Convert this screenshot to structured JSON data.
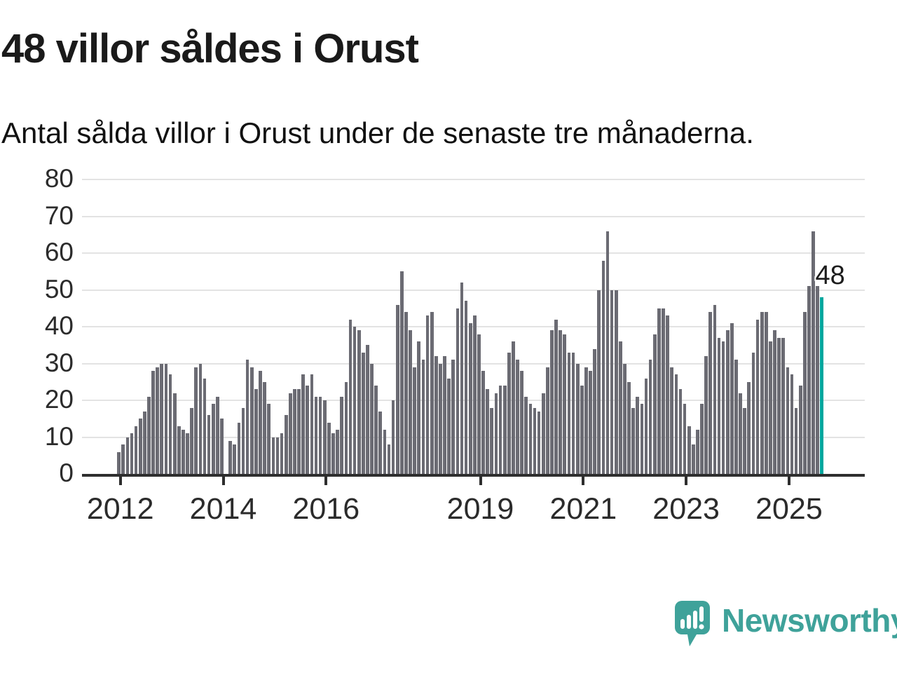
{
  "header": {
    "title": "48 villor såldes i Orust",
    "subtitle": "Antal sålda villor i Orust under de senaste tre månaderna."
  },
  "colors": {
    "bar": "#6b6b73",
    "highlight": "#00a79e",
    "axis": "#2e2e2e",
    "grid": "#e3e3e3",
    "text": "#1a1a1a",
    "logo": "#3fa29a"
  },
  "chart_data": {
    "type": "bar",
    "title": "48 villor såldes i Orust",
    "subtitle": "Antal sålda villor i Orust under de senaste tre månaderna.",
    "xlabel": "",
    "ylabel": "",
    "frequency": "monthly",
    "x_start": "2012-01",
    "x_end": "2025-09",
    "ylim": [
      0,
      80
    ],
    "grid": true,
    "legend": "none",
    "yticks": [
      0,
      10,
      20,
      30,
      40,
      50,
      60,
      70,
      80
    ],
    "xticks": [
      {
        "label": "2012",
        "month": 0
      },
      {
        "label": "2014",
        "month": 24
      },
      {
        "label": "2016",
        "month": 48
      },
      {
        "label": "2019",
        "month": 84
      },
      {
        "label": "2021",
        "month": 108
      },
      {
        "label": "2023",
        "month": 132
      },
      {
        "label": "2025",
        "month": 156
      }
    ],
    "values": [
      6,
      8,
      10,
      11,
      13,
      15,
      17,
      21,
      28,
      29,
      30,
      30,
      27,
      22,
      13,
      12,
      11,
      18,
      29,
      30,
      26,
      16,
      19,
      21,
      15,
      0,
      9,
      8,
      14,
      18,
      31,
      29,
      23,
      28,
      25,
      19,
      10,
      10,
      11,
      16,
      22,
      23,
      23,
      27,
      24,
      27,
      21,
      21,
      20,
      14,
      11,
      12,
      21,
      25,
      42,
      40,
      39,
      33,
      35,
      30,
      24,
      17,
      12,
      8,
      20,
      46,
      55,
      44,
      39,
      29,
      36,
      31,
      43,
      44,
      32,
      30,
      32,
      26,
      31,
      45,
      52,
      47,
      41,
      43,
      38,
      28,
      23,
      18,
      22,
      24,
      24,
      33,
      36,
      31,
      28,
      21,
      19,
      18,
      17,
      22,
      29,
      39,
      42,
      39,
      38,
      33,
      33,
      30,
      24,
      29,
      28,
      34,
      50,
      58,
      66,
      50,
      50,
      36,
      30,
      25,
      18,
      21,
      19,
      26,
      31,
      38,
      45,
      45,
      43,
      29,
      27,
      23,
      19,
      13,
      8,
      12,
      19,
      32,
      44,
      46,
      37,
      36,
      39,
      41,
      31,
      22,
      18,
      25,
      33,
      42,
      44,
      44,
      36,
      39,
      37,
      37,
      29,
      27,
      18,
      24,
      44,
      51,
      66,
      51,
      48
    ],
    "highlight_index": 164,
    "highlight_value": 48,
    "annotation": "48"
  },
  "footer": {
    "logo_text": "Newsworthy",
    "logo_icon": "bar-chart-speech-bubble-icon"
  }
}
